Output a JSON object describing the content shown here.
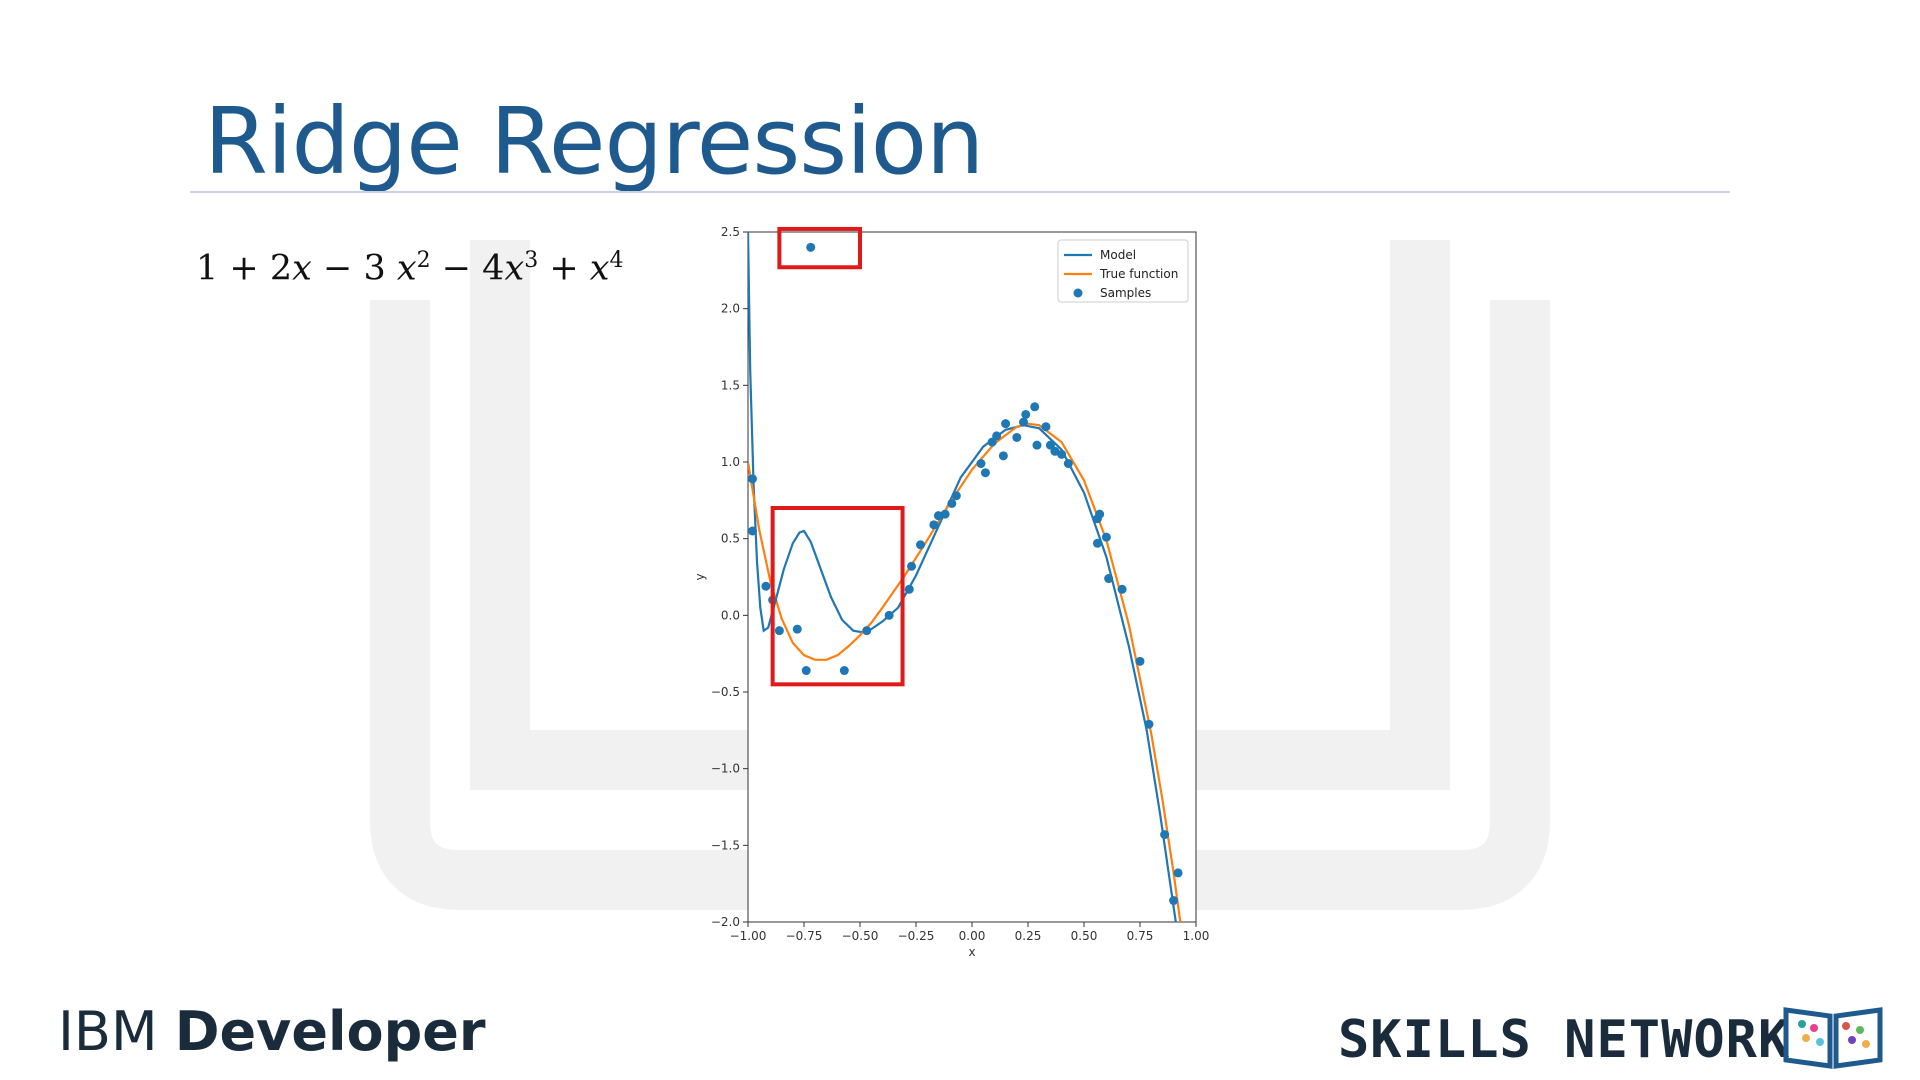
{
  "slide": {
    "title": "Ridge Regression",
    "formula": {
      "t1": "1 + 2",
      "x1": "x",
      "t2": " − 3 ",
      "x2": "x",
      "e2": "2",
      "t3": " − 4",
      "x3": "x",
      "e3": "3",
      "t4": " + ",
      "x4": "x",
      "e4": "4"
    }
  },
  "footer": {
    "ibm": "IBM",
    "developer": "Developer",
    "skills_network": "SKILLS NETWORK"
  },
  "colors": {
    "title": "#1f5a8f",
    "model": "#1f77b4",
    "true_function": "#ff7f0e",
    "samples": "#1f77b4",
    "highlight_box": "#e01a1a"
  },
  "chart_data": {
    "type": "line",
    "title": "",
    "xlabel": "x",
    "ylabel": "y",
    "xlim": [
      -1.0,
      1.0
    ],
    "ylim": [
      -2.0,
      2.5
    ],
    "xticks": [
      "−1.00",
      "−0.75",
      "−0.50",
      "−0.25",
      "0.00",
      "0.25",
      "0.50",
      "0.75",
      "1.00"
    ],
    "xtick_values": [
      -1.0,
      -0.75,
      -0.5,
      -0.25,
      0.0,
      0.25,
      0.5,
      0.75,
      1.0
    ],
    "yticks": [
      "2.5",
      "2.0",
      "1.5",
      "1.0",
      "0.5",
      "0.0",
      "−0.5",
      "−1.0",
      "−1.5",
      "−2.0"
    ],
    "ytick_values": [
      2.5,
      2.0,
      1.5,
      1.0,
      0.5,
      0.0,
      -0.5,
      -1.0,
      -1.5,
      -2.0
    ],
    "legend": {
      "position": "top-right",
      "entries": [
        "Model",
        "True function",
        "Samples"
      ]
    },
    "series": [
      {
        "name": "Model",
        "kind": "line",
        "points": [
          [
            -1.0,
            2.5
          ],
          [
            -0.99,
            1.6
          ],
          [
            -0.975,
            0.85
          ],
          [
            -0.96,
            0.35
          ],
          [
            -0.945,
            0.05
          ],
          [
            -0.93,
            -0.1
          ],
          [
            -0.91,
            -0.08
          ],
          [
            -0.88,
            0.08
          ],
          [
            -0.84,
            0.3
          ],
          [
            -0.8,
            0.47
          ],
          [
            -0.77,
            0.54
          ],
          [
            -0.75,
            0.55
          ],
          [
            -0.72,
            0.48
          ],
          [
            -0.68,
            0.32
          ],
          [
            -0.63,
            0.12
          ],
          [
            -0.58,
            -0.03
          ],
          [
            -0.53,
            -0.1
          ],
          [
            -0.49,
            -0.11
          ],
          [
            -0.45,
            -0.09
          ],
          [
            -0.4,
            -0.04
          ],
          [
            -0.33,
            0.05
          ],
          [
            -0.25,
            0.26
          ],
          [
            -0.15,
            0.58
          ],
          [
            -0.05,
            0.9
          ],
          [
            0.05,
            1.1
          ],
          [
            0.15,
            1.21
          ],
          [
            0.23,
            1.24
          ],
          [
            0.3,
            1.22
          ],
          [
            0.4,
            1.08
          ],
          [
            0.5,
            0.8
          ],
          [
            0.6,
            0.38
          ],
          [
            0.7,
            -0.2
          ],
          [
            0.78,
            -0.75
          ],
          [
            0.84,
            -1.3
          ],
          [
            0.88,
            -1.7
          ],
          [
            0.91,
            -2.0
          ]
        ]
      },
      {
        "name": "True function",
        "kind": "line",
        "points": [
          [
            -1.0,
            1.0
          ],
          [
            -0.95,
            0.56
          ],
          [
            -0.9,
            0.22
          ],
          [
            -0.85,
            -0.02
          ],
          [
            -0.8,
            -0.18
          ],
          [
            -0.75,
            -0.26
          ],
          [
            -0.7,
            -0.29
          ],
          [
            -0.65,
            -0.29
          ],
          [
            -0.6,
            -0.26
          ],
          [
            -0.55,
            -0.2
          ],
          [
            -0.5,
            -0.13
          ],
          [
            -0.45,
            -0.05
          ],
          [
            -0.4,
            0.05
          ],
          [
            -0.3,
            0.26
          ],
          [
            -0.2,
            0.49
          ],
          [
            -0.1,
            0.73
          ],
          [
            0.0,
            0.95
          ],
          [
            0.1,
            1.12
          ],
          [
            0.2,
            1.23
          ],
          [
            0.25,
            1.25
          ],
          [
            0.3,
            1.24
          ],
          [
            0.4,
            1.13
          ],
          [
            0.5,
            0.88
          ],
          [
            0.6,
            0.49
          ],
          [
            0.7,
            -0.06
          ],
          [
            0.8,
            -0.77
          ],
          [
            0.85,
            -1.2
          ],
          [
            0.9,
            -1.68
          ],
          [
            0.93,
            -2.0
          ]
        ]
      },
      {
        "name": "Samples",
        "kind": "scatter",
        "points": [
          [
            -0.72,
            2.4
          ],
          [
            -0.98,
            0.89
          ],
          [
            -0.98,
            0.55
          ],
          [
            -0.92,
            0.19
          ],
          [
            -0.89,
            0.1
          ],
          [
            -0.86,
            -0.1
          ],
          [
            -0.78,
            -0.09
          ],
          [
            -0.74,
            -0.36
          ],
          [
            -0.57,
            -0.36
          ],
          [
            -0.47,
            -0.1
          ],
          [
            -0.37,
            0.0
          ],
          [
            -0.28,
            0.17
          ],
          [
            -0.27,
            0.32
          ],
          [
            -0.23,
            0.46
          ],
          [
            -0.17,
            0.59
          ],
          [
            -0.15,
            0.65
          ],
          [
            -0.12,
            0.66
          ],
          [
            -0.09,
            0.73
          ],
          [
            -0.07,
            0.78
          ],
          [
            0.04,
            0.99
          ],
          [
            0.06,
            0.93
          ],
          [
            0.09,
            1.13
          ],
          [
            0.11,
            1.17
          ],
          [
            0.14,
            1.04
          ],
          [
            0.15,
            1.25
          ],
          [
            0.2,
            1.16
          ],
          [
            0.23,
            1.26
          ],
          [
            0.24,
            1.31
          ],
          [
            0.28,
            1.36
          ],
          [
            0.29,
            1.11
          ],
          [
            0.33,
            1.23
          ],
          [
            0.35,
            1.11
          ],
          [
            0.37,
            1.07
          ],
          [
            0.4,
            1.05
          ],
          [
            0.43,
            0.99
          ],
          [
            0.56,
            0.63
          ],
          [
            0.57,
            0.66
          ],
          [
            0.56,
            0.47
          ],
          [
            0.6,
            0.51
          ],
          [
            0.61,
            0.24
          ],
          [
            0.67,
            0.17
          ],
          [
            0.75,
            -0.3
          ],
          [
            0.79,
            -0.71
          ],
          [
            0.86,
            -1.43
          ],
          [
            0.9,
            -1.86
          ],
          [
            0.92,
            -1.68
          ]
        ]
      }
    ],
    "annotations": [
      {
        "type": "box",
        "x": [
          -0.89,
          -0.31
        ],
        "y": [
          -0.45,
          0.7
        ]
      },
      {
        "type": "box",
        "x": [
          -0.86,
          -0.5
        ],
        "y": [
          2.27,
          2.52
        ]
      }
    ]
  }
}
